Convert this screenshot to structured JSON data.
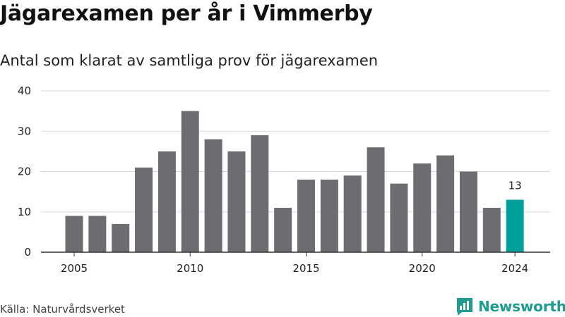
{
  "header": {
    "title": "Jägarexamen per år i Vimmerby",
    "subtitle": "Antal som klarat av samtliga prov för jägarexamen"
  },
  "footer": {
    "source": "Källa: Naturvårdsverket",
    "brand": "Newsworthy"
  },
  "colors": {
    "bar": "#6d6c71",
    "highlight": "#00a19a",
    "grid": "#d9d9d9",
    "axis": "#333333",
    "brand": "#1f9c91"
  },
  "chart_data": {
    "type": "bar",
    "x": [
      2005,
      2006,
      2007,
      2008,
      2009,
      2010,
      2011,
      2012,
      2013,
      2014,
      2015,
      2016,
      2017,
      2018,
      2019,
      2020,
      2021,
      2022,
      2023,
      2024
    ],
    "values": [
      9,
      9,
      7,
      21,
      25,
      35,
      28,
      25,
      29,
      11,
      18,
      18,
      19,
      26,
      17,
      22,
      24,
      20,
      11,
      13
    ],
    "highlight_index": 19,
    "data_labels": [
      {
        "index": 19,
        "text": "13"
      }
    ],
    "x_ticks": [
      "2005",
      "2010",
      "2015",
      "2020",
      "2024"
    ],
    "y_ticks": [
      0,
      10,
      20,
      30,
      40
    ],
    "ylim": [
      0,
      40
    ],
    "grid": true,
    "legend": "none"
  }
}
